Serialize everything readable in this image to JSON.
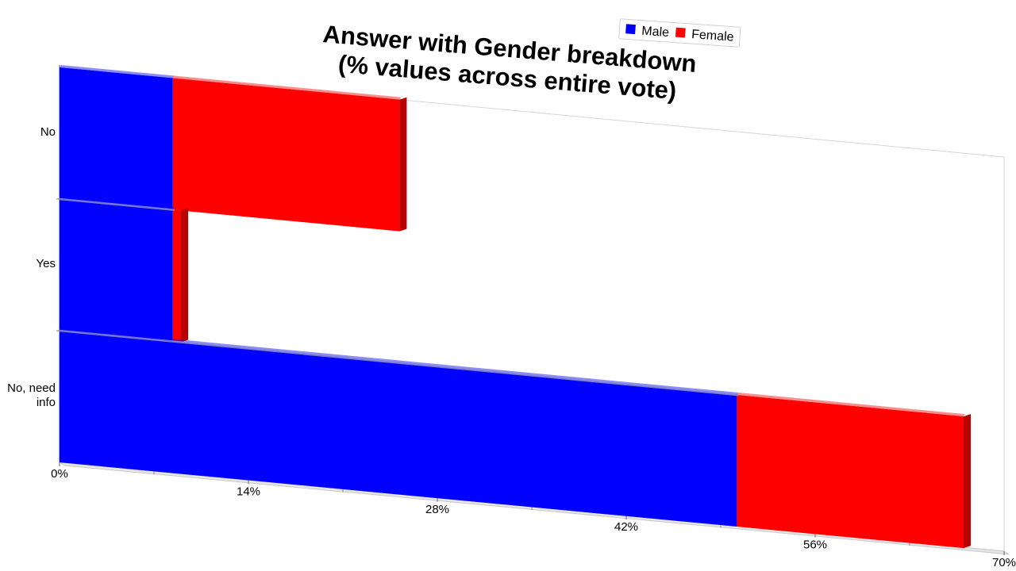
{
  "chart_data": {
    "type": "bar",
    "orientation": "horizontal",
    "stacked": true,
    "three_d": true,
    "title": [
      "Answer with Gender breakdown",
      "(% values across entire vote)"
    ],
    "categories": [
      "No",
      "Yes",
      "No, need info"
    ],
    "category_display": [
      [
        "No"
      ],
      [
        "Yes"
      ],
      [
        "No, need",
        "info"
      ]
    ],
    "series": [
      {
        "name": "Male",
        "values": [
          8.4,
          8.4,
          50.2
        ],
        "color": "#0000ff",
        "side_color": "#0000aa"
      },
      {
        "name": "Female",
        "values": [
          16.8,
          0.6,
          16.8
        ],
        "color": "#ff0000",
        "side_color": "#b80000"
      }
    ],
    "xaxis": {
      "ticks": [
        0,
        14,
        28,
        42,
        56,
        70
      ],
      "tick_labels": [
        "0%",
        "14%",
        "28%",
        "42%",
        "56%",
        "70%"
      ],
      "range": [
        0,
        70
      ]
    },
    "legend": {
      "position": "top-right",
      "entries": [
        "Male",
        "Female"
      ]
    },
    "grid": false
  }
}
